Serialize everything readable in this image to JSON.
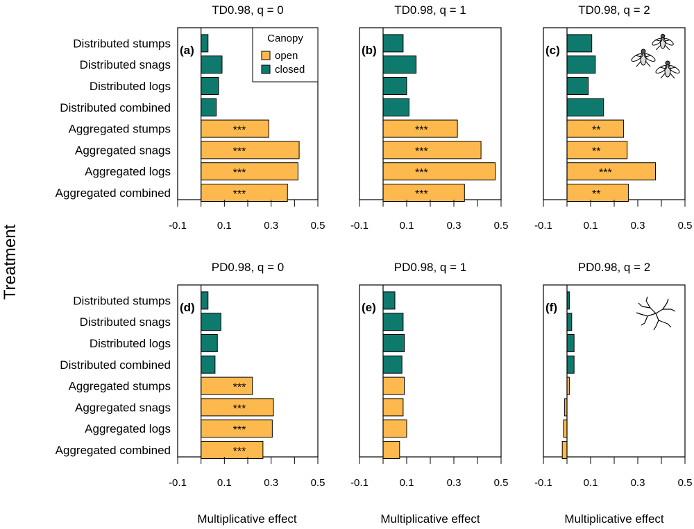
{
  "figure": {
    "y_axis_label": "Treatment",
    "x_axis_label": "Multiplicative effect",
    "legend": {
      "title": "Canopy",
      "entries": [
        {
          "label": "open",
          "color": "#FDB94E"
        },
        {
          "label": "closed",
          "color": "#0E7A6E"
        }
      ]
    },
    "treatments": [
      "Distributed stumps",
      "Distributed snags",
      "Distributed logs",
      "Distributed combined",
      "Aggregated stumps",
      "Aggregated snags",
      "Aggregated logs",
      "Aggregated combined"
    ],
    "bar_canopy": [
      "closed",
      "closed",
      "closed",
      "closed",
      "open",
      "open",
      "open",
      "open"
    ],
    "x_ticks": [
      "-0.1",
      "0.1",
      "0.3",
      "0.5"
    ],
    "xlim": [
      -0.1,
      0.5
    ],
    "icons": [
      "insects-icon",
      "phylogeny-icon"
    ]
  },
  "chart_data": [
    {
      "type": "bar",
      "panel": "(a)",
      "title": "TD0.98, q = 0",
      "categories": [
        "Distributed stumps",
        "Distributed snags",
        "Distributed logs",
        "Distributed combined",
        "Aggregated stumps",
        "Aggregated snags",
        "Aggregated logs",
        "Aggregated combined"
      ],
      "values": [
        0.03,
        0.09,
        0.075,
        0.065,
        0.29,
        0.42,
        0.415,
        0.37
      ],
      "significance": [
        "",
        "",
        "",
        "",
        "***",
        "***",
        "***",
        "***"
      ],
      "xlabel": "",
      "ylabel": "Treatment",
      "xlim": [
        -0.1,
        0.5
      ]
    },
    {
      "type": "bar",
      "panel": "(b)",
      "title": "TD0.98, q = 1",
      "categories": [
        "Distributed stumps",
        "Distributed snags",
        "Distributed logs",
        "Distributed combined",
        "Aggregated stumps",
        "Aggregated snags",
        "Aggregated logs",
        "Aggregated combined"
      ],
      "values": [
        0.085,
        0.14,
        0.1,
        0.11,
        0.315,
        0.415,
        0.475,
        0.345
      ],
      "significance": [
        "",
        "",
        "",
        "",
        "***",
        "***",
        "***",
        "***"
      ],
      "xlabel": "",
      "ylabel": "",
      "xlim": [
        -0.1,
        0.5
      ]
    },
    {
      "type": "bar",
      "panel": "(c)",
      "title": "TD0.98, q = 2",
      "categories": [
        "Distributed stumps",
        "Distributed snags",
        "Distributed logs",
        "Distributed combined",
        "Aggregated stumps",
        "Aggregated snags",
        "Aggregated logs",
        "Aggregated combined"
      ],
      "values": [
        0.105,
        0.12,
        0.09,
        0.155,
        0.24,
        0.255,
        0.375,
        0.26
      ],
      "significance": [
        "",
        "",
        "",
        "",
        "**",
        "**",
        "***",
        "**"
      ],
      "xlabel": "",
      "ylabel": "",
      "xlim": [
        -0.1,
        0.5
      ]
    },
    {
      "type": "bar",
      "panel": "(d)",
      "title": "PD0.98, q = 0",
      "categories": [
        "Distributed stumps",
        "Distributed snags",
        "Distributed logs",
        "Distributed combined",
        "Aggregated stumps",
        "Aggregated snags",
        "Aggregated logs",
        "Aggregated combined"
      ],
      "values": [
        0.03,
        0.085,
        0.07,
        0.06,
        0.22,
        0.31,
        0.305,
        0.265
      ],
      "significance": [
        "",
        "",
        "",
        "",
        "***",
        "***",
        "***",
        "***"
      ],
      "xlabel": "Multiplicative effect",
      "ylabel": "Treatment",
      "xlim": [
        -0.1,
        0.5
      ]
    },
    {
      "type": "bar",
      "panel": "(e)",
      "title": "PD0.98, q = 1",
      "categories": [
        "Distributed stumps",
        "Distributed snags",
        "Distributed logs",
        "Distributed combined",
        "Aggregated stumps",
        "Aggregated snags",
        "Aggregated logs",
        "Aggregated combined"
      ],
      "values": [
        0.05,
        0.085,
        0.09,
        0.08,
        0.09,
        0.085,
        0.1,
        0.07
      ],
      "significance": [
        "",
        "",
        "",
        "",
        "",
        "",
        "",
        ""
      ],
      "xlabel": "Multiplicative effect",
      "ylabel": "",
      "xlim": [
        -0.1,
        0.5
      ]
    },
    {
      "type": "bar",
      "panel": "(f)",
      "title": "PD0.98, q = 2",
      "categories": [
        "Distributed stumps",
        "Distributed snags",
        "Distributed logs",
        "Distributed combined",
        "Aggregated stumps",
        "Aggregated snags",
        "Aggregated logs",
        "Aggregated combined"
      ],
      "values": [
        0.01,
        0.02,
        0.03,
        0.03,
        0.01,
        -0.01,
        -0.015,
        -0.02
      ],
      "significance": [
        "",
        "",
        "",
        "",
        "",
        "",
        "",
        ""
      ],
      "xlabel": "Multiplicative effect",
      "ylabel": "",
      "xlim": [
        -0.1,
        0.5
      ]
    }
  ]
}
